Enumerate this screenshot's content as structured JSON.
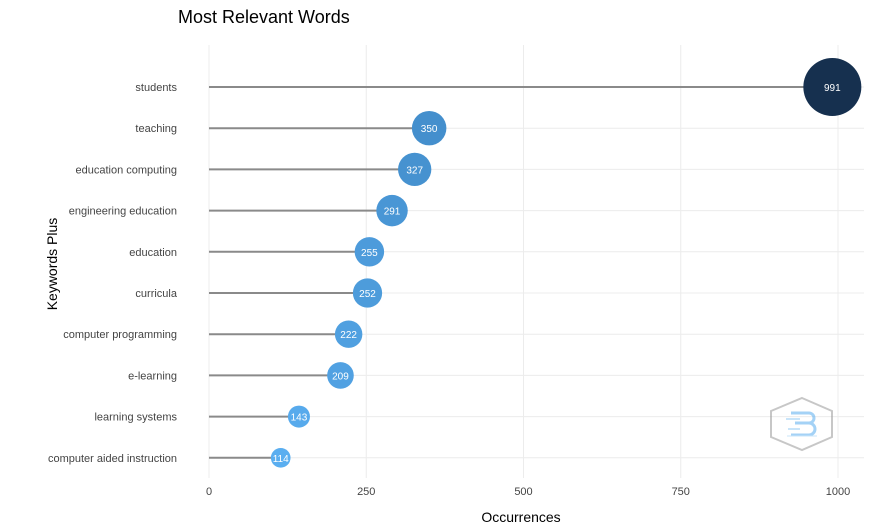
{
  "chart_data": {
    "type": "lollipop",
    "title": "Most Relevant Words",
    "xlabel": "Occurrences",
    "ylabel": "Keywords Plus",
    "categories": [
      "students",
      "teaching",
      "education computing",
      "engineering education",
      "education",
      "curricula",
      "computer programming",
      "e-learning",
      "learning systems",
      "computer aided instruction"
    ],
    "values": [
      991,
      350,
      327,
      291,
      255,
      252,
      222,
      209,
      143,
      114
    ],
    "xlim": [
      0,
      1000
    ],
    "xticks": [
      0,
      250,
      500,
      750,
      1000
    ],
    "grid": true,
    "colors": {
      "dark": "#16304f",
      "mid": "#3f88c5",
      "light": "#5aaef0",
      "stem": "#8a8a8a"
    }
  }
}
